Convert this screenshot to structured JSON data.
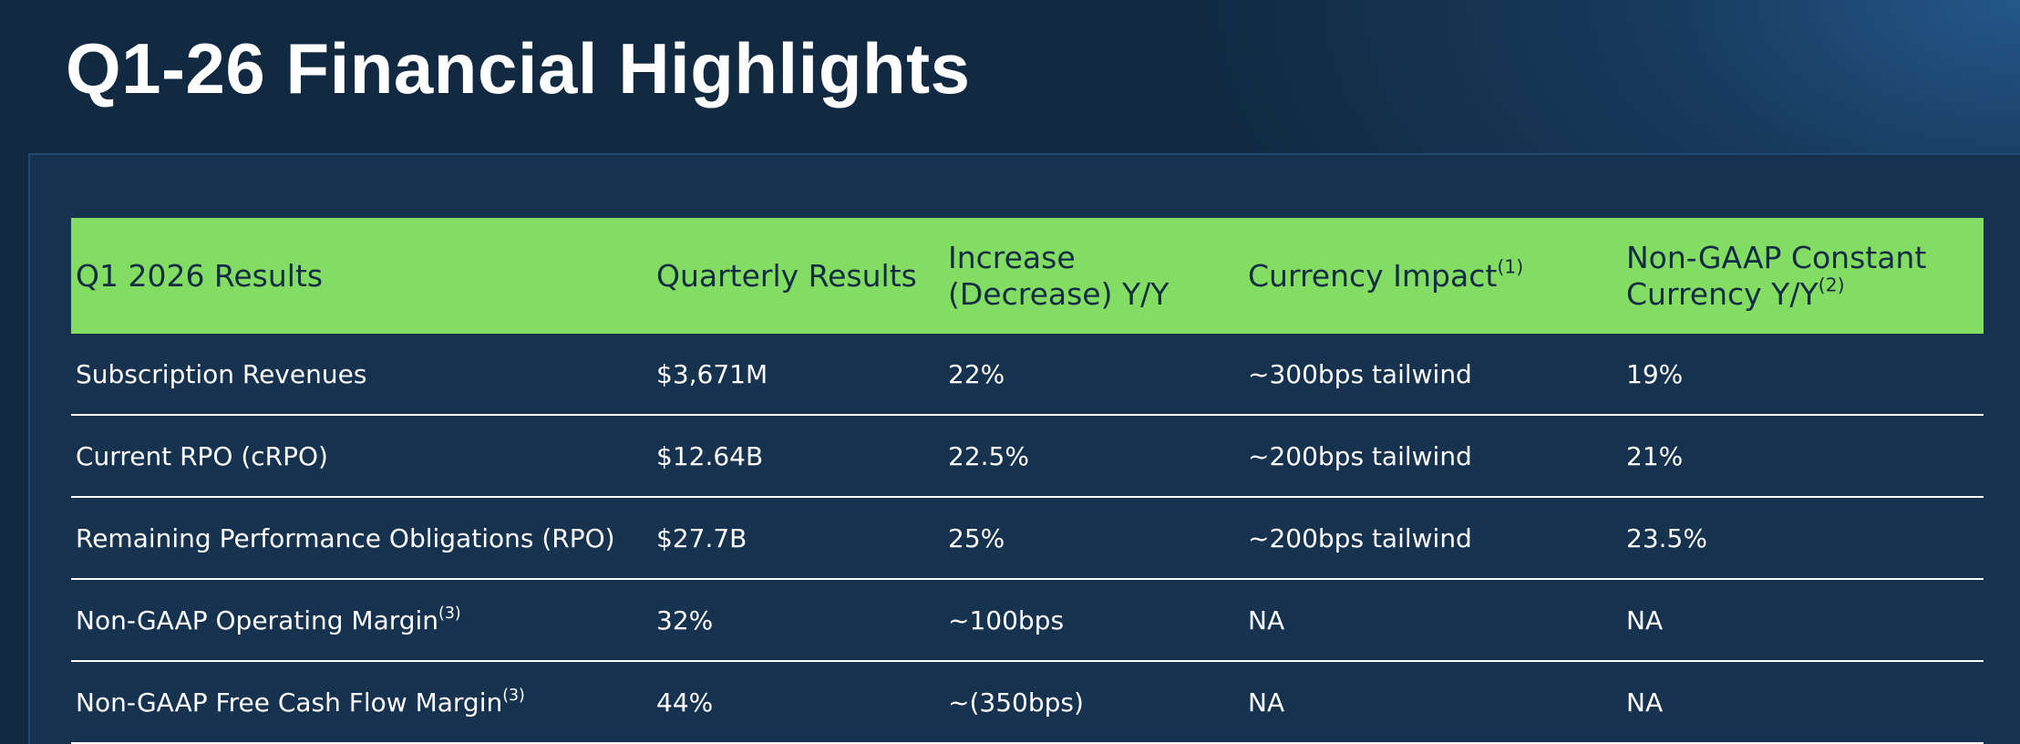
{
  "title": "Q1-26 Financial Highlights",
  "table": {
    "header": [
      {
        "text": "Q1 2026 Results"
      },
      {
        "text": "Quarterly Results"
      },
      {
        "text": "Increase (Decrease) Y/Y"
      },
      {
        "text": "Currency Impact",
        "note": "(1)"
      },
      {
        "text": "Non-GAAP Constant Currency Y/Y",
        "note": "(2)"
      }
    ],
    "rows": [
      [
        {
          "text": "Subscription Revenues"
        },
        "$3,671M",
        "22%",
        "~300bps tailwind",
        "19%"
      ],
      [
        {
          "text": "Current RPO (cRPO)"
        },
        "$12.64B",
        "22.5%",
        "~200bps tailwind",
        "21%"
      ],
      [
        {
          "text": "Remaining Performance Obligations (RPO)"
        },
        "$27.7B",
        "25%",
        "~200bps tailwind",
        "23.5%"
      ],
      [
        {
          "text": "Non-GAAP Operating Margin",
          "note": "(3)"
        },
        "32%",
        "~100bps",
        "NA",
        "NA"
      ],
      [
        {
          "text": "Non-GAAP Free Cash Flow Margin",
          "note": "(3)"
        },
        "44%",
        "~(350bps)",
        "NA",
        "NA"
      ]
    ]
  }
}
